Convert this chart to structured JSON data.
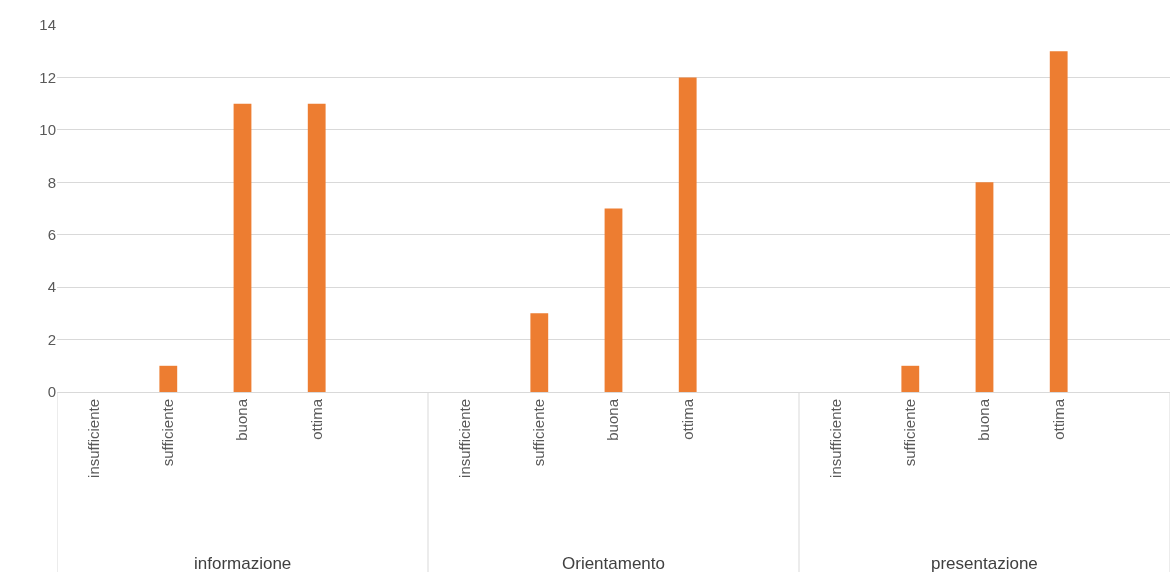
{
  "chart_data": {
    "type": "bar",
    "categories": [
      "insufficiente",
      "sufficiente",
      "buona",
      "ottima",
      null,
      "insufficiente",
      "sufficiente",
      "buona",
      "ottima",
      null,
      "insufficiente",
      "sufficiente",
      "buona",
      "ottima",
      null
    ],
    "values": [
      0,
      1,
      11,
      11,
      null,
      0,
      3,
      7,
      12,
      null,
      0,
      1,
      8,
      13,
      null
    ],
    "color": "#ed7d31",
    "annotations": [
      "informazione",
      "Orientamento",
      "presentazione"
    ],
    "ylim": [
      0,
      14
    ],
    "yticks": [
      0,
      2,
      4,
      6,
      8,
      10,
      12,
      14
    ],
    "grid": "y"
  }
}
